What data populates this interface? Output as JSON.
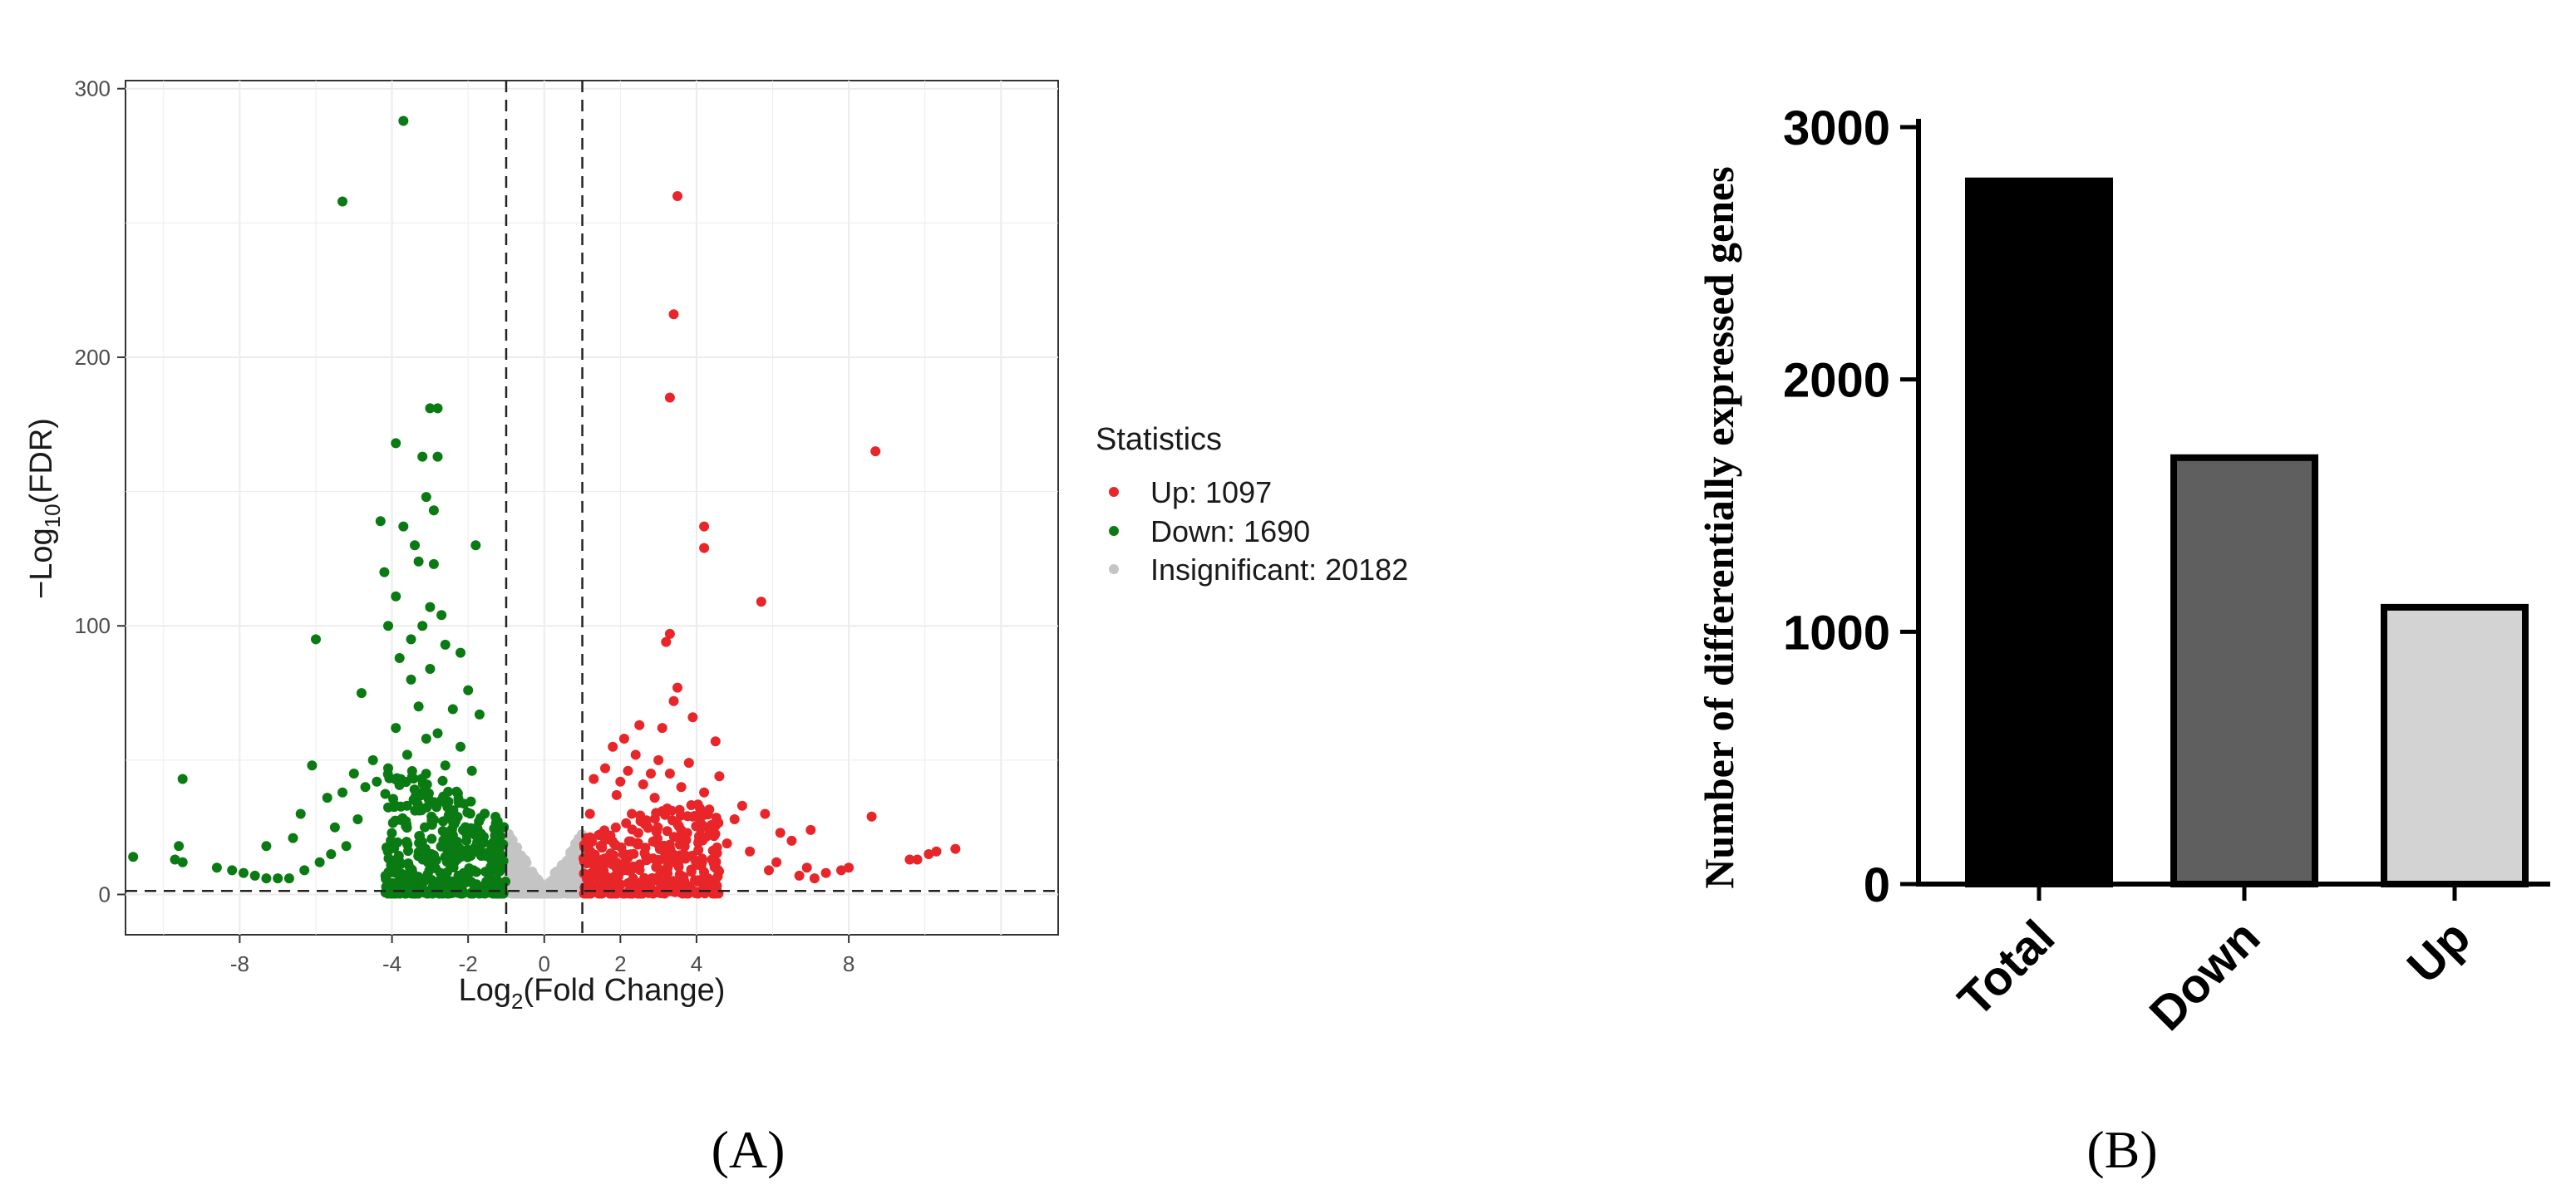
{
  "panels": {
    "a_label": "(A)",
    "b_label": "(B)"
  },
  "colors": {
    "up": "#e8262a",
    "down": "#0a7a12",
    "insignificant": "#c4c4c4",
    "bar_total": "#000000",
    "bar_down": "#5f5f5f",
    "bar_up": "#d3d3d3"
  },
  "chart_data": [
    {
      "type": "scatter",
      "panel": "A",
      "xlabel_main": "Log",
      "xlabel_sub": "2",
      "xlabel_rest": "(Fold Change)",
      "ylabel_main": "−Log",
      "ylabel_sub": "10",
      "ylabel_rest": "(FDR)",
      "xlim": [
        -11,
        13.5
      ],
      "ylim": [
        -15,
        303
      ],
      "x_ticks": [
        -8,
        -4,
        -2,
        0,
        2,
        4,
        8
      ],
      "y_ticks": [
        0,
        100,
        200,
        300
      ],
      "grid": true,
      "vlines": [
        -1,
        1
      ],
      "hline": 1.3,
      "legend": {
        "title": "Statistics",
        "placement": "right",
        "entries": [
          {
            "key": "up",
            "label": "Up: 1097"
          },
          {
            "key": "down",
            "label": "Down: 1690"
          },
          {
            "key": "insignificant",
            "label": "Insignificant: 20182"
          }
        ]
      },
      "series": [
        {
          "name": "Up",
          "points": [
            [
              3.5,
              260
            ],
            [
              3.4,
              216
            ],
            [
              3.3,
              185
            ],
            [
              8.7,
              165
            ],
            [
              4.2,
              137
            ],
            [
              4.2,
              129
            ],
            [
              5.7,
              109
            ],
            [
              3.3,
              97
            ],
            [
              3.2,
              94
            ],
            [
              3.5,
              77
            ],
            [
              3.4,
              72
            ],
            [
              3.9,
              66
            ],
            [
              3.1,
              62
            ],
            [
              4.5,
              57
            ],
            [
              2.5,
              63
            ],
            [
              2.1,
              58
            ],
            [
              1.8,
              55
            ],
            [
              2.4,
              52
            ],
            [
              3.0,
              50
            ],
            [
              3.8,
              49
            ],
            [
              1.6,
              47
            ],
            [
              2.2,
              46
            ],
            [
              2.8,
              45
            ],
            [
              3.3,
              45
            ],
            [
              4.6,
              44
            ],
            [
              1.3,
              43
            ],
            [
              2.0,
              42
            ],
            [
              2.6,
              41
            ],
            [
              3.6,
              40
            ],
            [
              4.2,
              38
            ],
            [
              1.9,
              37
            ],
            [
              2.9,
              36
            ],
            [
              5.2,
              33
            ],
            [
              5.8,
              30
            ],
            [
              8.6,
              29
            ],
            [
              3.1,
              31
            ],
            [
              1.2,
              30
            ],
            [
              2.3,
              30
            ],
            [
              3.9,
              29
            ],
            [
              5.0,
              28
            ],
            [
              6.2,
              23
            ],
            [
              7.0,
              24
            ],
            [
              6.5,
              20
            ],
            [
              4.8,
              19
            ],
            [
              5.4,
              16
            ],
            [
              6.1,
              12
            ],
            [
              6.9,
              10
            ],
            [
              7.4,
              8
            ],
            [
              7.8,
              9
            ],
            [
              8.0,
              10
            ],
            [
              10.8,
              17
            ],
            [
              10.3,
              16
            ],
            [
              10.1,
              15
            ],
            [
              9.8,
              13
            ],
            [
              9.6,
              13
            ],
            [
              5.9,
              9
            ],
            [
              6.7,
              7
            ],
            [
              7.1,
              6
            ],
            [
              4.4,
              13
            ],
            [
              4.0,
              11
            ]
          ],
          "cloud": {
            "x_range": [
              1.0,
              4.6
            ],
            "y_range": [
              4,
              34
            ],
            "count": 360,
            "seed": 17
          }
        },
        {
          "name": "Down",
          "points": [
            [
              -3.7,
              288
            ],
            [
              -5.3,
              258
            ],
            [
              -3.0,
              181
            ],
            [
              -2.8,
              181
            ],
            [
              -3.9,
              168
            ],
            [
              -3.2,
              163
            ],
            [
              -2.8,
              163
            ],
            [
              -4.3,
              139
            ],
            [
              -3.1,
              148
            ],
            [
              -3.7,
              137
            ],
            [
              -2.9,
              143
            ],
            [
              -3.4,
              130
            ],
            [
              -1.8,
              130
            ],
            [
              -3.3,
              124
            ],
            [
              -2.9,
              123
            ],
            [
              -4.2,
              120
            ],
            [
              -3.9,
              111
            ],
            [
              -3.0,
              107
            ],
            [
              -2.7,
              104
            ],
            [
              -3.2,
              100
            ],
            [
              -4.1,
              100
            ],
            [
              -3.5,
              95
            ],
            [
              -6.0,
              95
            ],
            [
              -2.6,
              93
            ],
            [
              -2.2,
              90
            ],
            [
              -3.8,
              88
            ],
            [
              -3.0,
              84
            ],
            [
              -3.5,
              80
            ],
            [
              -2.0,
              76
            ],
            [
              -4.8,
              75
            ],
            [
              -3.3,
              70
            ],
            [
              -2.4,
              69
            ],
            [
              -1.7,
              67
            ],
            [
              -3.9,
              62
            ],
            [
              -2.8,
              60
            ],
            [
              -3.1,
              58
            ],
            [
              -2.2,
              55
            ],
            [
              -4.5,
              50
            ],
            [
              -4.1,
              47
            ],
            [
              -3.6,
              52
            ],
            [
              -2.6,
              48
            ],
            [
              -1.9,
              46
            ],
            [
              -6.1,
              48
            ],
            [
              -5.0,
              45
            ],
            [
              -4.4,
              42
            ],
            [
              -4.7,
              40
            ],
            [
              -9.5,
              43
            ],
            [
              -5.3,
              38
            ],
            [
              -5.7,
              36
            ],
            [
              -3.9,
              33
            ],
            [
              -6.4,
              30
            ],
            [
              -4.9,
              28
            ],
            [
              -5.5,
              25
            ],
            [
              -6.6,
              21
            ],
            [
              -7.3,
              18
            ],
            [
              -9.6,
              18
            ],
            [
              -9.7,
              13
            ],
            [
              -9.5,
              12
            ],
            [
              -10.8,
              14
            ],
            [
              -8.6,
              10
            ],
            [
              -8.2,
              9
            ],
            [
              -7.9,
              8
            ],
            [
              -7.6,
              7
            ],
            [
              -7.3,
              6
            ],
            [
              -7.0,
              6
            ],
            [
              -6.7,
              6
            ],
            [
              -6.3,
              9
            ],
            [
              -5.9,
              12
            ],
            [
              -5.6,
              15
            ],
            [
              -5.2,
              18
            ]
          ],
          "cloud": {
            "x_range": [
              -4.2,
              -1.0
            ],
            "y_range": [
              4,
              46
            ],
            "count": 420,
            "seed": 29
          }
        },
        {
          "name": "Insignificant",
          "cloud": {
            "x_range": [
              -1.0,
              1.0
            ],
            "y_range": [
              0,
              22
            ],
            "count": 420,
            "seed": 41
          }
        }
      ]
    },
    {
      "type": "bar",
      "panel": "B",
      "ylabel": "Number of differentially expressed genes",
      "categories": [
        "Total",
        "Down",
        "Up"
      ],
      "values": [
        2787,
        1690,
        1097
      ],
      "ylim": [
        0,
        3000
      ],
      "y_ticks": [
        0,
        1000,
        2000,
        3000
      ],
      "grid": false
    }
  ]
}
